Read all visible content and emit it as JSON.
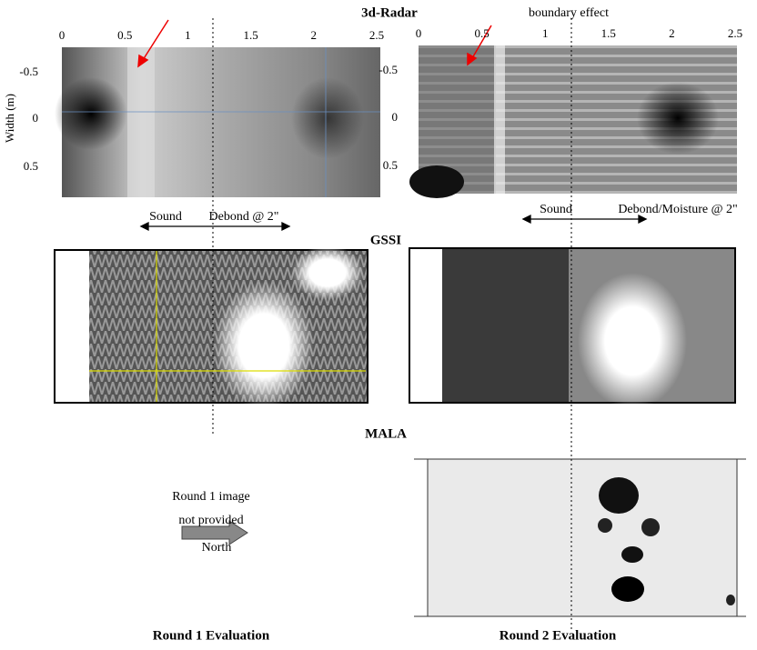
{
  "figure": {
    "top_title": "3d-Radar",
    "annotation": "boundary effect",
    "y_axis_label": "Width (m)",
    "gssi_title": "GSSI",
    "mala_title": "MALA",
    "left": {
      "xticks": [
        "0",
        "0.5",
        "1",
        "1.5",
        "2",
        "2.5"
      ],
      "yticks": [
        "-0.5",
        "0",
        "0.5"
      ],
      "sound": "Sound",
      "debond": "Debond @ 2\""
    },
    "right": {
      "xticks": [
        "0",
        "0.5",
        "1",
        "1.5",
        "2",
        "2.5"
      ],
      "yticks": [
        "-0.5",
        "0",
        "0.5"
      ],
      "sound": "Sound",
      "debond": "Debond/Moisture @ 2\""
    },
    "missing": [
      "Round 1 image",
      "not provided"
    ],
    "direction": "North",
    "captions": [
      "Round 1 Evaluation",
      "Round 2 Evaluation"
    ]
  }
}
